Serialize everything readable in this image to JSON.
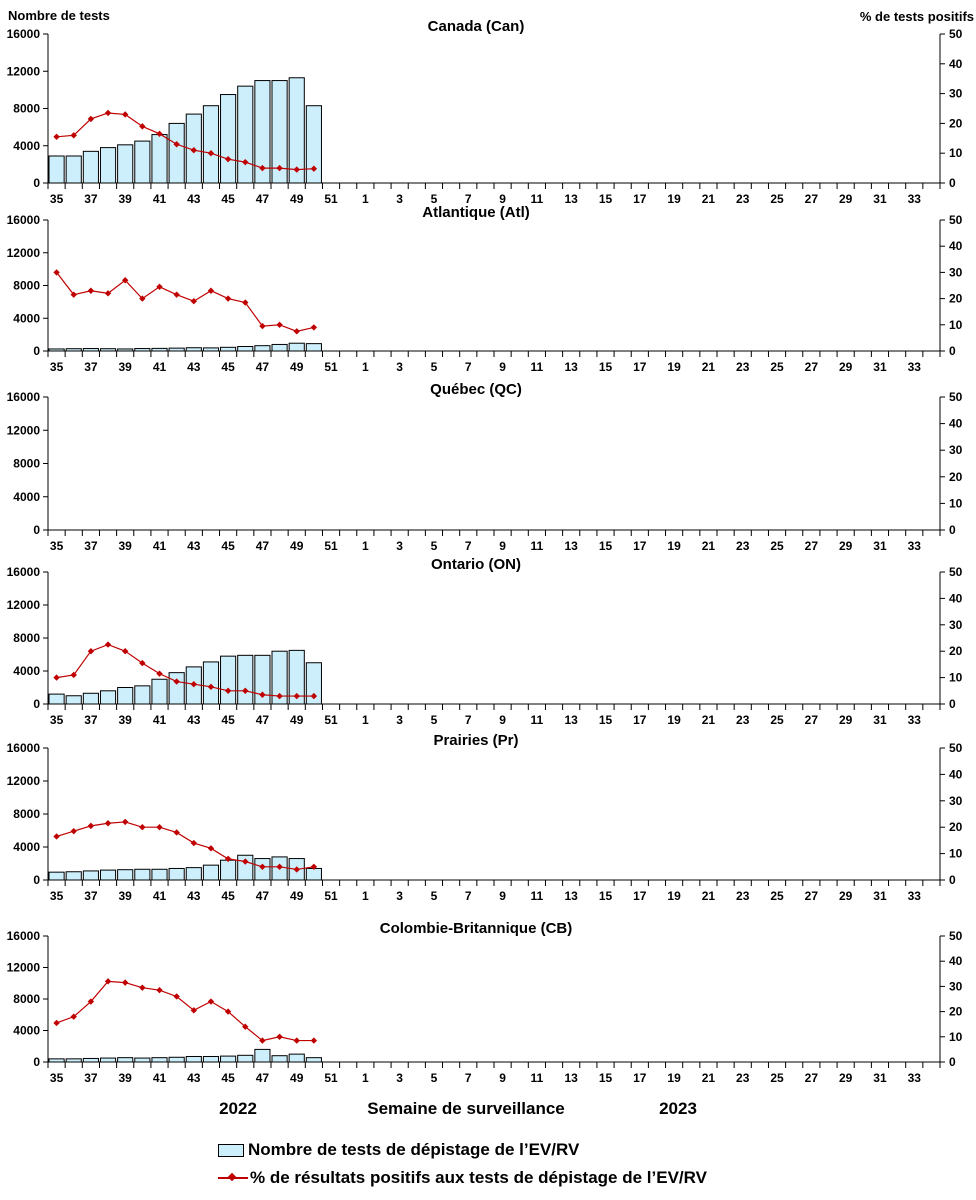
{
  "chart_data": {
    "type": "bar+line",
    "left_axis_title": "Nombre de tests",
    "right_axis_title": "% de tests positifs",
    "x_axis_title": "Semaine de surveillance",
    "year_labels": [
      "2022",
      "2023"
    ],
    "weeks": [
      "35",
      "36",
      "37",
      "38",
      "39",
      "40",
      "41",
      "42",
      "43",
      "44",
      "45",
      "46",
      "47",
      "48",
      "49",
      "50",
      "51",
      "52",
      "1",
      "2",
      "3",
      "4",
      "5",
      "6",
      "7",
      "8",
      "9",
      "10",
      "11",
      "12",
      "13",
      "14",
      "15",
      "16",
      "17",
      "18",
      "19",
      "20",
      "21",
      "22",
      "23",
      "24",
      "25",
      "26",
      "27",
      "28",
      "29",
      "30",
      "31",
      "32",
      "33",
      "34"
    ],
    "tick_labels": [
      "35",
      "37",
      "39",
      "41",
      "43",
      "45",
      "47",
      "49",
      "51",
      "1",
      "3",
      "5",
      "7",
      "9",
      "11",
      "13",
      "15",
      "17",
      "19",
      "21",
      "23",
      "25",
      "27",
      "29",
      "31",
      "33"
    ],
    "y_left": {
      "min": 0,
      "max": 16000,
      "ticks": [
        "0",
        "4000",
        "8000",
        "12000",
        "16000"
      ]
    },
    "y_right": {
      "min": 0,
      "max": 50,
      "ticks": [
        "0",
        "10",
        "20",
        "30",
        "40",
        "50"
      ]
    },
    "colors": {
      "bar_fill": "#cdeefb",
      "bar_stroke": "#000000",
      "line": "#c00000"
    },
    "panels": [
      {
        "title": "Canada (Can)",
        "bar_series": [
          2900,
          2900,
          3400,
          3800,
          4100,
          4500,
          5200,
          6400,
          7400,
          8300,
          9500,
          10400,
          11000,
          11000,
          11300,
          8300
        ],
        "line_series": [
          15.5,
          16,
          21.5,
          23.5,
          23,
          19,
          16.5,
          13,
          11,
          10,
          8,
          7,
          5,
          5,
          4.5,
          4.8
        ]
      },
      {
        "title": "Atlantique (Atl)",
        "bar_series": [
          250,
          280,
          300,
          280,
          250,
          300,
          320,
          350,
          400,
          380,
          450,
          550,
          650,
          800,
          950,
          900
        ],
        "line_series": [
          30,
          21.5,
          23,
          22,
          27,
          20,
          24.5,
          21.5,
          19,
          23,
          20,
          18.5,
          9.5,
          10,
          7.5,
          9
        ]
      },
      {
        "title": "Québec (QC)",
        "bar_series": [],
        "line_series": []
      },
      {
        "title": "Ontario (ON)",
        "bar_series": [
          1200,
          1000,
          1300,
          1600,
          2000,
          2200,
          3000,
          3800,
          4500,
          5100,
          5800,
          5900,
          5900,
          6400,
          6500,
          5000
        ],
        "line_series": [
          10,
          11,
          20,
          22.5,
          20,
          15.5,
          11.5,
          8.5,
          7.5,
          6.5,
          5,
          5,
          3.5,
          3,
          3,
          3
        ]
      },
      {
        "title": "Prairies (Pr)",
        "bar_series": [
          950,
          1000,
          1100,
          1200,
          1250,
          1300,
          1300,
          1400,
          1500,
          1800,
          2400,
          3000,
          2600,
          2800,
          2600,
          1400
        ],
        "line_series": [
          16.5,
          18.5,
          20.5,
          21.5,
          22,
          20,
          20,
          18,
          14,
          12,
          8,
          7,
          5,
          5,
          4,
          5
        ]
      },
      {
        "title": "Colombie-Britannique (CB)",
        "bar_series": [
          400,
          400,
          450,
          500,
          550,
          500,
          550,
          600,
          700,
          700,
          750,
          850,
          1600,
          800,
          1000,
          550
        ],
        "line_series": [
          15.5,
          18,
          24,
          32,
          31.5,
          29.5,
          28.5,
          26,
          20.5,
          24,
          20,
          14,
          8.5,
          10,
          8.5,
          8.5
        ]
      }
    ],
    "legend": [
      {
        "type": "bar",
        "label": "Nombre de tests de dépistage de l’EV/RV"
      },
      {
        "type": "line",
        "label": "% de résultats positifs aux tests de dépistage de l’EV/RV"
      }
    ]
  }
}
